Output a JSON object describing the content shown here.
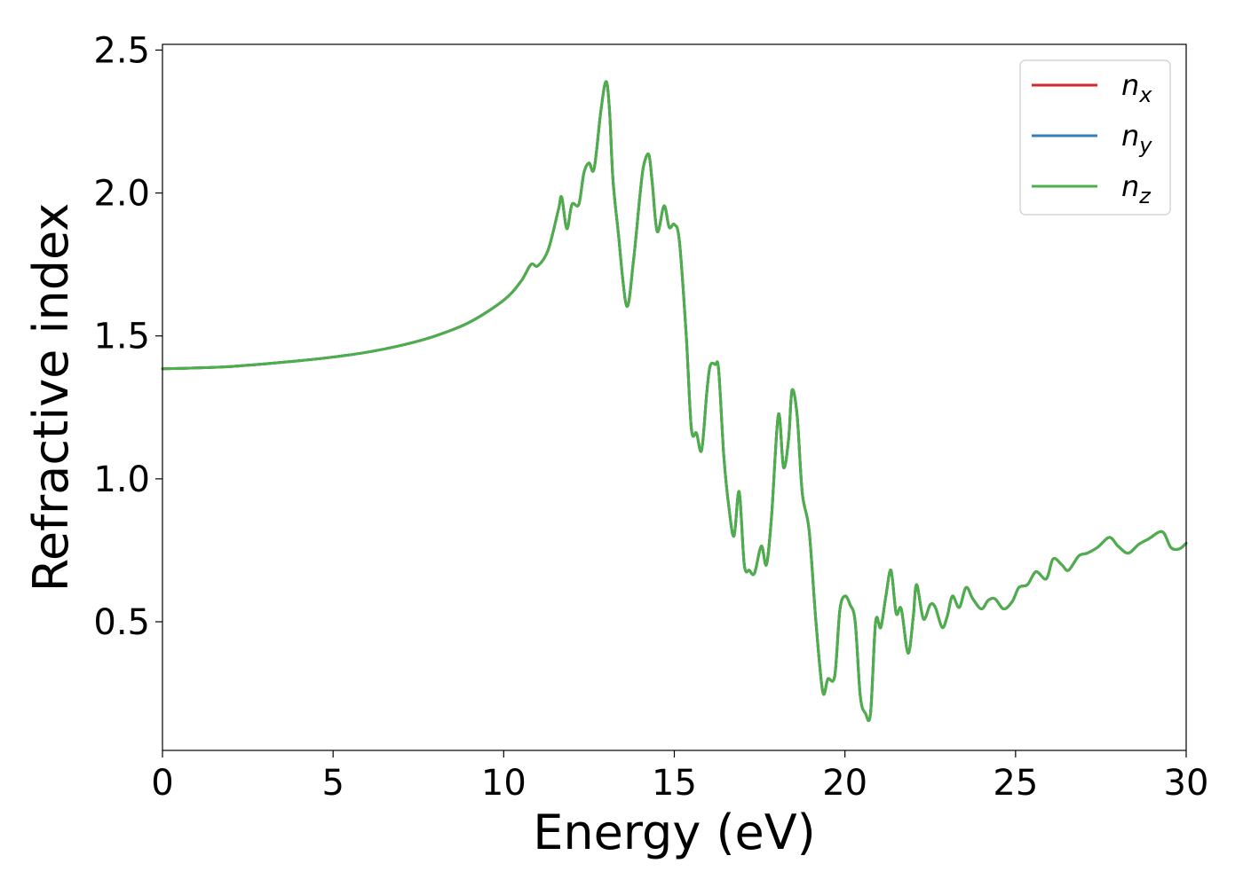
{
  "chart_data": {
    "type": "line",
    "xlabel": "Energy (eV)",
    "ylabel": "Refractive index",
    "xlim": [
      0,
      30
    ],
    "ylim": [
      0.05,
      2.52
    ],
    "xticks": [
      0,
      5,
      10,
      15,
      20,
      25,
      30
    ],
    "xtick_labels": [
      "0",
      "5",
      "10",
      "15",
      "20",
      "25",
      "30"
    ],
    "yticks": [
      0.5,
      1.0,
      1.5,
      2.0,
      2.5
    ],
    "ytick_labels": [
      "0.5",
      "1.0",
      "1.5",
      "2.0",
      "2.5"
    ],
    "grid": false,
    "legend_position": "top-right",
    "x": [
      0,
      1,
      2,
      3,
      4,
      5,
      6,
      7,
      8,
      9,
      10,
      10.5,
      10.8,
      11.0,
      11.3,
      11.6,
      11.7,
      11.85,
      12.0,
      12.2,
      12.35,
      12.5,
      12.65,
      12.85,
      13.0,
      13.1,
      13.2,
      13.35,
      13.6,
      13.8,
      14.0,
      14.1,
      14.25,
      14.35,
      14.5,
      14.7,
      14.85,
      15.0,
      15.15,
      15.35,
      15.5,
      15.65,
      15.8,
      15.95,
      16.05,
      16.2,
      16.3,
      16.45,
      16.6,
      16.75,
      16.9,
      17.05,
      17.2,
      17.35,
      17.55,
      17.7,
      17.85,
      18.05,
      18.2,
      18.35,
      18.45,
      18.6,
      18.75,
      18.95,
      19.15,
      19.35,
      19.5,
      19.7,
      19.85,
      20.0,
      20.15,
      20.3,
      20.45,
      20.6,
      20.75,
      20.9,
      21.05,
      21.2,
      21.35,
      21.5,
      21.65,
      21.85,
      22.0,
      22.1,
      22.3,
      22.5,
      22.65,
      22.85,
      23.0,
      23.15,
      23.35,
      23.55,
      23.75,
      24.0,
      24.2,
      24.4,
      24.65,
      24.9,
      25.1,
      25.35,
      25.6,
      25.9,
      26.1,
      26.35,
      26.55,
      26.85,
      27.1,
      27.4,
      27.75,
      28.0,
      28.3,
      28.6,
      28.9,
      29.3,
      29.55,
      29.8,
      30.0
    ],
    "series": [
      {
        "name": "n_x",
        "color": "#d62728",
        "values": [
          1.385,
          1.388,
          1.393,
          1.402,
          1.413,
          1.426,
          1.443,
          1.467,
          1.5,
          1.548,
          1.625,
          1.69,
          1.75,
          1.745,
          1.8,
          1.94,
          1.985,
          1.875,
          1.96,
          1.96,
          2.07,
          2.105,
          2.085,
          2.29,
          2.39,
          2.29,
          2.05,
          1.87,
          1.605,
          1.76,
          2.0,
          2.095,
          2.135,
          2.04,
          1.865,
          1.955,
          1.88,
          1.89,
          1.83,
          1.5,
          1.175,
          1.16,
          1.1,
          1.3,
          1.395,
          1.4,
          1.38,
          1.08,
          0.9,
          0.8,
          0.955,
          0.7,
          0.68,
          0.67,
          0.765,
          0.7,
          0.87,
          1.225,
          1.04,
          1.14,
          1.31,
          1.22,
          0.95,
          0.82,
          0.5,
          0.255,
          0.3,
          0.31,
          0.54,
          0.59,
          0.56,
          0.5,
          0.24,
          0.18,
          0.18,
          0.5,
          0.48,
          0.59,
          0.68,
          0.53,
          0.545,
          0.39,
          0.515,
          0.63,
          0.51,
          0.56,
          0.55,
          0.48,
          0.52,
          0.59,
          0.55,
          0.62,
          0.58,
          0.545,
          0.575,
          0.58,
          0.545,
          0.57,
          0.62,
          0.63,
          0.675,
          0.65,
          0.72,
          0.7,
          0.68,
          0.73,
          0.74,
          0.76,
          0.795,
          0.765,
          0.74,
          0.77,
          0.79,
          0.815,
          0.76,
          0.755,
          0.775
        ]
      },
      {
        "name": "n_y",
        "color": "#377eb8",
        "values": [
          1.385,
          1.388,
          1.393,
          1.402,
          1.413,
          1.426,
          1.443,
          1.467,
          1.5,
          1.548,
          1.625,
          1.69,
          1.75,
          1.745,
          1.8,
          1.94,
          1.985,
          1.875,
          1.96,
          1.96,
          2.07,
          2.105,
          2.085,
          2.29,
          2.39,
          2.29,
          2.05,
          1.87,
          1.605,
          1.76,
          2.0,
          2.095,
          2.135,
          2.04,
          1.865,
          1.955,
          1.88,
          1.89,
          1.83,
          1.5,
          1.175,
          1.16,
          1.1,
          1.3,
          1.395,
          1.4,
          1.38,
          1.08,
          0.9,
          0.8,
          0.955,
          0.7,
          0.68,
          0.67,
          0.765,
          0.7,
          0.87,
          1.225,
          1.04,
          1.14,
          1.31,
          1.22,
          0.95,
          0.82,
          0.5,
          0.255,
          0.3,
          0.31,
          0.54,
          0.59,
          0.56,
          0.5,
          0.24,
          0.18,
          0.18,
          0.5,
          0.48,
          0.59,
          0.68,
          0.53,
          0.545,
          0.39,
          0.515,
          0.63,
          0.51,
          0.56,
          0.55,
          0.48,
          0.52,
          0.59,
          0.55,
          0.62,
          0.58,
          0.545,
          0.575,
          0.58,
          0.545,
          0.57,
          0.62,
          0.63,
          0.675,
          0.65,
          0.72,
          0.7,
          0.68,
          0.73,
          0.74,
          0.76,
          0.795,
          0.765,
          0.74,
          0.77,
          0.79,
          0.815,
          0.76,
          0.755,
          0.775
        ]
      },
      {
        "name": "n_z",
        "color": "#4daf4a",
        "values": [
          1.385,
          1.388,
          1.393,
          1.402,
          1.413,
          1.426,
          1.443,
          1.467,
          1.5,
          1.548,
          1.625,
          1.69,
          1.75,
          1.745,
          1.8,
          1.94,
          1.985,
          1.875,
          1.96,
          1.96,
          2.07,
          2.105,
          2.085,
          2.29,
          2.39,
          2.29,
          2.05,
          1.87,
          1.605,
          1.76,
          2.0,
          2.095,
          2.135,
          2.04,
          1.865,
          1.955,
          1.88,
          1.89,
          1.83,
          1.5,
          1.175,
          1.16,
          1.1,
          1.3,
          1.395,
          1.4,
          1.38,
          1.08,
          0.9,
          0.8,
          0.955,
          0.7,
          0.68,
          0.67,
          0.765,
          0.7,
          0.87,
          1.225,
          1.04,
          1.14,
          1.31,
          1.22,
          0.95,
          0.82,
          0.5,
          0.255,
          0.3,
          0.31,
          0.54,
          0.59,
          0.56,
          0.5,
          0.24,
          0.18,
          0.18,
          0.5,
          0.48,
          0.59,
          0.68,
          0.53,
          0.545,
          0.39,
          0.515,
          0.63,
          0.51,
          0.56,
          0.55,
          0.48,
          0.52,
          0.59,
          0.55,
          0.62,
          0.58,
          0.545,
          0.575,
          0.58,
          0.545,
          0.57,
          0.62,
          0.63,
          0.675,
          0.65,
          0.72,
          0.7,
          0.68,
          0.73,
          0.74,
          0.76,
          0.795,
          0.765,
          0.74,
          0.77,
          0.79,
          0.815,
          0.76,
          0.755,
          0.775
        ]
      }
    ],
    "legend": [
      {
        "base": "n",
        "sub": "x",
        "color": "#d62728"
      },
      {
        "base": "n",
        "sub": "y",
        "color": "#377eb8"
      },
      {
        "base": "n",
        "sub": "z",
        "color": "#4daf4a"
      }
    ]
  }
}
